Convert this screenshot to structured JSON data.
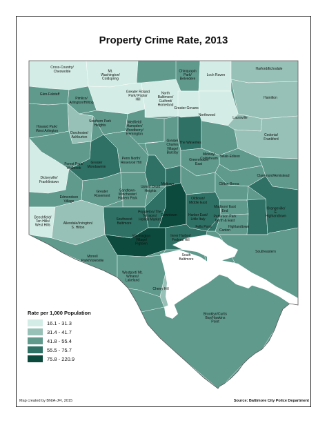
{
  "title": "Property Crime Rate, 2013",
  "legend": {
    "title": "Rate per 1,000 Population",
    "items": [
      {
        "label": "16.1 - 31.3",
        "color": "#d3ece5"
      },
      {
        "label": "31.4 - 41.7",
        "color": "#97c1b6"
      },
      {
        "label": "41.8 - 55.4",
        "color": "#5f9a8d"
      },
      {
        "label": "55.5 - 75.7",
        "color": "#2f7265"
      },
      {
        "label": "75.8 - 220.9",
        "color": "#0c4a3d"
      }
    ]
  },
  "credit": "Map created by BNIA-JFI, 2015",
  "source": "Source: Baltimore City Police Department",
  "water_color": "#ffffff",
  "neighborhoods": [
    {
      "label": "Cross-Country/ Cheswolde",
      "cls": 0
    },
    {
      "label": "Mt. Washington/ Coldspring",
      "cls": 0
    },
    {
      "label": "Chinquapin Park/ Belvedere",
      "cls": 2
    },
    {
      "label": "Loch Raven",
      "cls": 0
    },
    {
      "label": "Harford/Echodale",
      "cls": 1
    },
    {
      "label": "Glen-Falstaff",
      "cls": 2
    },
    {
      "label": "Pimlico/ Arlington/Hilltop",
      "cls": 2
    },
    {
      "label": "Greater Roland Park/ Poplar Hill",
      "cls": 0
    },
    {
      "label": "North Baltimore/ Guilford/ Homeland",
      "cls": 0
    },
    {
      "label": "Hamilton",
      "cls": 1
    },
    {
      "label": "Greater Govans",
      "cls": 0
    },
    {
      "label": "Northwood",
      "cls": 0
    },
    {
      "label": "Lauraville",
      "cls": 1
    },
    {
      "label": "Howard Park/ West Arlington",
      "cls": 2
    },
    {
      "label": "Dorchester/ Ashburton",
      "cls": 1
    },
    {
      "label": "Southern Park Heights",
      "cls": 2
    },
    {
      "label": "Medfield/ Hampden/ Woodberry/ Remington",
      "cls": 2
    },
    {
      "label": "The Waverlies",
      "cls": 3
    },
    {
      "label": "Cedonia/ Frankford",
      "cls": 1
    },
    {
      "label": "Forest Park/ Walbrook",
      "cls": 2
    },
    {
      "label": "Greater Mondawmin",
      "cls": 3
    },
    {
      "label": "Penn North/ Reservoir Hill",
      "cls": 2
    },
    {
      "label": "Greater Charles Village/ Barclay",
      "cls": 2
    },
    {
      "label": "Midway/ Coldstream",
      "cls": 2
    },
    {
      "label": "Belair-Edison",
      "cls": 2
    },
    {
      "label": "Claremont/Armistead",
      "cls": 2
    },
    {
      "label": "Dickeyville/ Franklintown",
      "cls": 0
    },
    {
      "label": "Greenmount East",
      "cls": 2
    },
    {
      "label": "Clifton-Berea",
      "cls": 2
    },
    {
      "label": "Edmondson Village",
      "cls": 2
    },
    {
      "label": "Greater Rosemont",
      "cls": 2
    },
    {
      "label": "Sandtown- Winchester/ Harlem Park",
      "cls": 2
    },
    {
      "label": "Upton/ Druid Heights",
      "cls": 3
    },
    {
      "label": "Midtown",
      "cls": 3
    },
    {
      "label": "Oldtown/ Middle East",
      "cls": 2
    },
    {
      "label": "Madison/ East End",
      "cls": 2
    },
    {
      "label": "Patterson Park North & East",
      "cls": 2
    },
    {
      "label": "Beechfield/ Ten Hills/ West Hills",
      "cls": 0
    },
    {
      "label": "Allendale/Irvington/ S. Hilton",
      "cls": 1
    },
    {
      "label": "Southwest Baltimore",
      "cls": 3
    },
    {
      "label": "Poppleton/ The Terraces/ Hollins Market",
      "cls": 3
    },
    {
      "label": "Downtown",
      "cls": 4
    },
    {
      "label": "Harbor East/ Little Italy",
      "cls": 3
    },
    {
      "label": "Fells Point",
      "cls": 3
    },
    {
      "label": "Canton",
      "cls": 2
    },
    {
      "label": "Highlandtown",
      "cls": 3
    },
    {
      "label": "Orangeville/ E. Highlandtown",
      "cls": 3
    },
    {
      "label": "Washington Village/ Pigtown",
      "cls": 4
    },
    {
      "label": "Inner Harbor/ Federal Hill",
      "cls": 3
    },
    {
      "label": "Morrell Park/Violetville",
      "cls": 2
    },
    {
      "label": "South Baltimore",
      "cls": 2
    },
    {
      "label": "Southeastern",
      "cls": 2
    },
    {
      "label": "Westport/ Mt. Winans/ Lakeland",
      "cls": 2
    },
    {
      "label": "Cherry Hill",
      "cls": 1
    },
    {
      "label": "Brooklyn/Curtis Bay/Hawkins Point",
      "cls": 2
    }
  ]
}
